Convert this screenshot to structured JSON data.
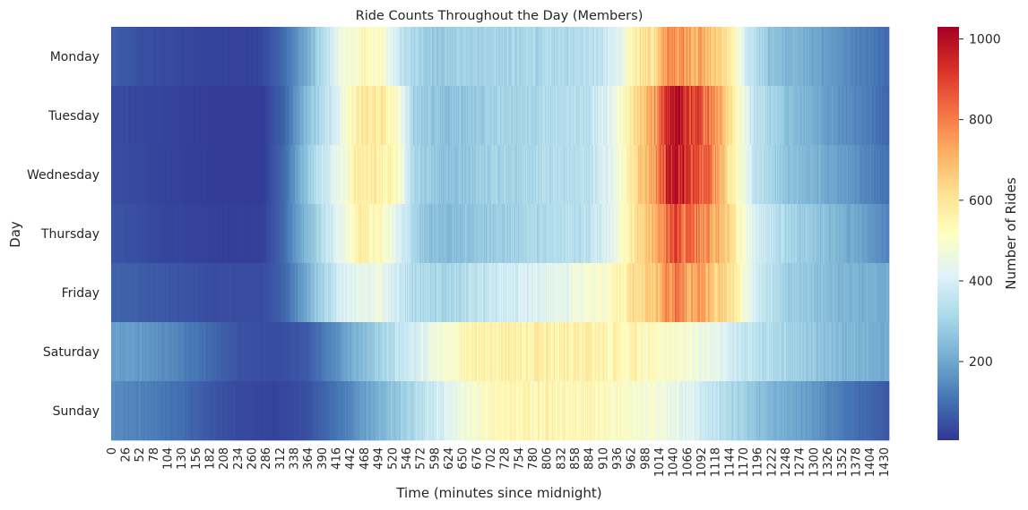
{
  "chart_data": {
    "type": "heatmap",
    "title": "Ride Counts Throughout the Day (Members)",
    "xlabel": "Time (minutes since midnight)",
    "ylabel": "Day",
    "colorbar_label": "Number of Rides",
    "colormap": "RdYlBu_r",
    "colormap_stops": [
      "#313695",
      "#4575b4",
      "#74add1",
      "#abd9e9",
      "#e0f3f8",
      "#ffffbf",
      "#fee090",
      "#fdae61",
      "#f46d43",
      "#d73027",
      "#a50026"
    ],
    "value_range": [
      5,
      1030
    ],
    "colorbar_ticks": [
      200,
      400,
      600,
      800,
      1000
    ],
    "x_range": [
      0,
      1439
    ],
    "x_tick_step": 26,
    "x_ticks": [
      0,
      26,
      52,
      78,
      104,
      130,
      156,
      182,
      208,
      234,
      260,
      286,
      312,
      338,
      364,
      390,
      416,
      442,
      468,
      494,
      520,
      546,
      572,
      598,
      624,
      650,
      676,
      702,
      728,
      754,
      780,
      806,
      832,
      858,
      884,
      910,
      936,
      962,
      988,
      1014,
      1040,
      1066,
      1092,
      1118,
      1144,
      1170,
      1196,
      1222,
      1248,
      1274,
      1300,
      1326,
      1352,
      1378,
      1404,
      1430
    ],
    "rows": [
      {
        "day": "Monday",
        "profile": [
          [
            0,
            70
          ],
          [
            60,
            45
          ],
          [
            180,
            25
          ],
          [
            270,
            25
          ],
          [
            310,
            70
          ],
          [
            360,
            200
          ],
          [
            420,
            440
          ],
          [
            470,
            540
          ],
          [
            500,
            500
          ],
          [
            540,
            340
          ],
          [
            600,
            270
          ],
          [
            700,
            300
          ],
          [
            800,
            310
          ],
          [
            900,
            340
          ],
          [
            940,
            420
          ],
          [
            970,
            580
          ],
          [
            1010,
            640
          ],
          [
            1030,
            760
          ],
          [
            1045,
            790
          ],
          [
            1080,
            730
          ],
          [
            1120,
            650
          ],
          [
            1150,
            560
          ],
          [
            1170,
            400
          ],
          [
            1220,
            260
          ],
          [
            1300,
            200
          ],
          [
            1360,
            150
          ],
          [
            1439,
            90
          ]
        ]
      },
      {
        "day": "Tuesday",
        "profile": [
          [
            0,
            40
          ],
          [
            100,
            25
          ],
          [
            200,
            15
          ],
          [
            280,
            15
          ],
          [
            320,
            80
          ],
          [
            360,
            240
          ],
          [
            420,
            420
          ],
          [
            460,
            590
          ],
          [
            500,
            580
          ],
          [
            530,
            500
          ],
          [
            560,
            300
          ],
          [
            620,
            250
          ],
          [
            700,
            290
          ],
          [
            800,
            320
          ],
          [
            880,
            340
          ],
          [
            930,
            440
          ],
          [
            970,
            620
          ],
          [
            1010,
            760
          ],
          [
            1030,
            960
          ],
          [
            1045,
            1010
          ],
          [
            1070,
            930
          ],
          [
            1100,
            820
          ],
          [
            1130,
            700
          ],
          [
            1160,
            520
          ],
          [
            1190,
            350
          ],
          [
            1260,
            250
          ],
          [
            1330,
            180
          ],
          [
            1400,
            120
          ],
          [
            1439,
            80
          ]
        ]
      },
      {
        "day": "Wednesday",
        "profile": [
          [
            0,
            45
          ],
          [
            100,
            25
          ],
          [
            200,
            15
          ],
          [
            280,
            15
          ],
          [
            320,
            90
          ],
          [
            360,
            260
          ],
          [
            420,
            450
          ],
          [
            460,
            590
          ],
          [
            500,
            580
          ],
          [
            530,
            520
          ],
          [
            560,
            300
          ],
          [
            620,
            250
          ],
          [
            700,
            290
          ],
          [
            800,
            320
          ],
          [
            880,
            340
          ],
          [
            930,
            440
          ],
          [
            970,
            620
          ],
          [
            1010,
            780
          ],
          [
            1030,
            950
          ],
          [
            1045,
            990
          ],
          [
            1070,
            920
          ],
          [
            1100,
            820
          ],
          [
            1130,
            700
          ],
          [
            1160,
            520
          ],
          [
            1190,
            350
          ],
          [
            1260,
            250
          ],
          [
            1330,
            200
          ],
          [
            1400,
            140
          ],
          [
            1439,
            100
          ]
        ]
      },
      {
        "day": "Thursday",
        "profile": [
          [
            0,
            55
          ],
          [
            100,
            30
          ],
          [
            200,
            20
          ],
          [
            280,
            20
          ],
          [
            320,
            90
          ],
          [
            360,
            240
          ],
          [
            420,
            420
          ],
          [
            460,
            560
          ],
          [
            500,
            520
          ],
          [
            540,
            380
          ],
          [
            580,
            260
          ],
          [
            620,
            240
          ],
          [
            700,
            280
          ],
          [
            800,
            320
          ],
          [
            880,
            340
          ],
          [
            930,
            440
          ],
          [
            970,
            600
          ],
          [
            1010,
            720
          ],
          [
            1030,
            830
          ],
          [
            1045,
            870
          ],
          [
            1070,
            830
          ],
          [
            1100,
            760
          ],
          [
            1130,
            700
          ],
          [
            1160,
            540
          ],
          [
            1190,
            400
          ],
          [
            1260,
            300
          ],
          [
            1330,
            240
          ],
          [
            1400,
            180
          ],
          [
            1439,
            140
          ]
        ]
      },
      {
        "day": "Friday",
        "profile": [
          [
            0,
            80
          ],
          [
            100,
            60
          ],
          [
            200,
            40
          ],
          [
            280,
            40
          ],
          [
            320,
            80
          ],
          [
            360,
            200
          ],
          [
            400,
            330
          ],
          [
            440,
            420
          ],
          [
            500,
            450
          ],
          [
            560,
            320
          ],
          [
            620,
            310
          ],
          [
            700,
            360
          ],
          [
            800,
            420
          ],
          [
            880,
            460
          ],
          [
            930,
            530
          ],
          [
            970,
            620
          ],
          [
            1010,
            660
          ],
          [
            1030,
            760
          ],
          [
            1045,
            780
          ],
          [
            1070,
            740
          ],
          [
            1100,
            700
          ],
          [
            1130,
            650
          ],
          [
            1160,
            560
          ],
          [
            1190,
            390
          ],
          [
            1260,
            280
          ],
          [
            1330,
            240
          ],
          [
            1400,
            220
          ],
          [
            1439,
            200
          ]
        ]
      },
      {
        "day": "Saturday",
        "profile": [
          [
            0,
            190
          ],
          [
            60,
            170
          ],
          [
            120,
            140
          ],
          [
            180,
            90
          ],
          [
            240,
            50
          ],
          [
            300,
            40
          ],
          [
            360,
            60
          ],
          [
            420,
            160
          ],
          [
            480,
            270
          ],
          [
            540,
            360
          ],
          [
            600,
            460
          ],
          [
            660,
            540
          ],
          [
            720,
            560
          ],
          [
            800,
            570
          ],
          [
            880,
            560
          ],
          [
            960,
            540
          ],
          [
            1040,
            500
          ],
          [
            1100,
            450
          ],
          [
            1160,
            380
          ],
          [
            1220,
            320
          ],
          [
            1300,
            270
          ],
          [
            1360,
            230
          ],
          [
            1439,
            210
          ]
        ]
      },
      {
        "day": "Sunday",
        "profile": [
          [
            0,
            150
          ],
          [
            60,
            130
          ],
          [
            120,
            100
          ],
          [
            180,
            60
          ],
          [
            240,
            35
          ],
          [
            300,
            25
          ],
          [
            360,
            45
          ],
          [
            420,
            110
          ],
          [
            480,
            200
          ],
          [
            540,
            280
          ],
          [
            600,
            380
          ],
          [
            660,
            480
          ],
          [
            720,
            540
          ],
          [
            800,
            550
          ],
          [
            880,
            530
          ],
          [
            960,
            500
          ],
          [
            1040,
            450
          ],
          [
            1100,
            380
          ],
          [
            1160,
            300
          ],
          [
            1220,
            230
          ],
          [
            1300,
            170
          ],
          [
            1360,
            110
          ],
          [
            1439,
            60
          ]
        ]
      }
    ]
  }
}
